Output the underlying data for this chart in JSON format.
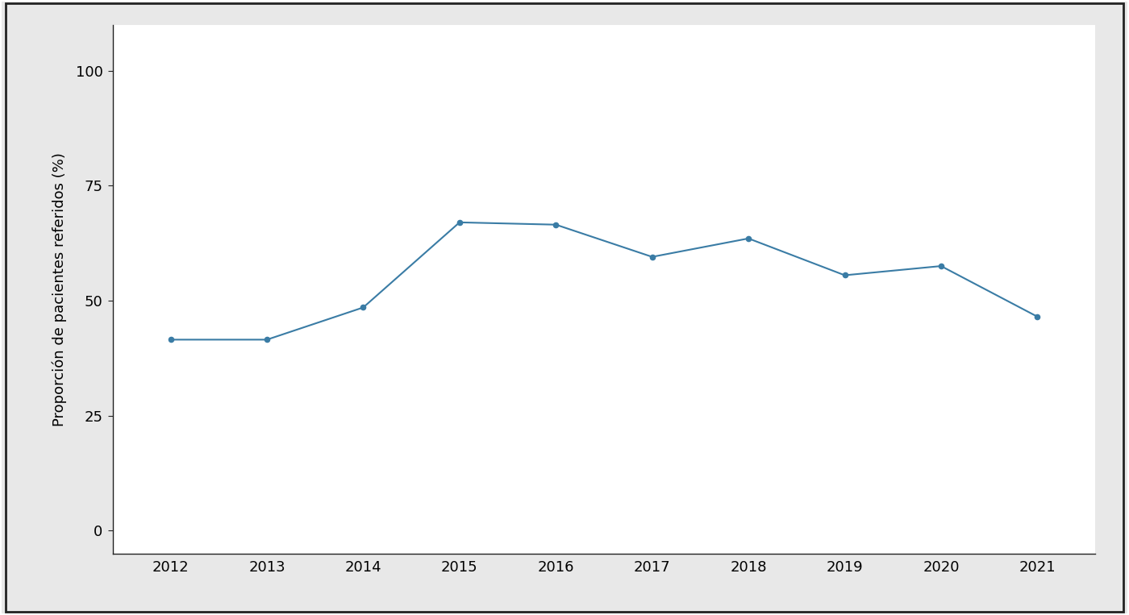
{
  "years": [
    2012,
    2013,
    2014,
    2015,
    2016,
    2017,
    2018,
    2019,
    2020,
    2021
  ],
  "values": [
    41.5,
    41.5,
    48.5,
    67.0,
    66.5,
    59.5,
    63.5,
    55.5,
    57.5,
    46.5
  ],
  "line_color": "#3a7ca5",
  "marker": "o",
  "marker_size": 4.5,
  "line_width": 1.5,
  "ylabel": "Proporción de pacientes referidos (%)",
  "xlabel": "",
  "ylim": [
    -5,
    110
  ],
  "yticks": [
    0,
    25,
    50,
    75,
    100
  ],
  "xticks": [
    2012,
    2013,
    2014,
    2015,
    2016,
    2017,
    2018,
    2019,
    2020,
    2021
  ],
  "title": "",
  "figure_facecolor": "#e8e8e8",
  "axes_facecolor": "#ffffff",
  "spine_color": "#222222",
  "frame_color": "#222222",
  "tick_label_fontsize": 13,
  "ylabel_fontsize": 13,
  "figure_border_color": "#222222",
  "figure_border_linewidth": 1.5
}
